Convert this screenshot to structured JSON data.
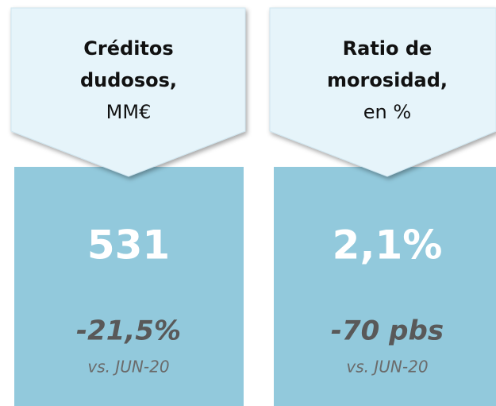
{
  "cards": [
    {
      "title": [
        "Créditos",
        "dudosos,",
        "MM€"
      ],
      "value": "531",
      "change": "-21,5%",
      "note": "vs. JUN-20"
    },
    {
      "title": [
        "Ratio de",
        "morosidad,",
        "en %"
      ],
      "value": "2,1%",
      "change": "-70 pbs",
      "note": "vs. JUN-20"
    }
  ]
}
